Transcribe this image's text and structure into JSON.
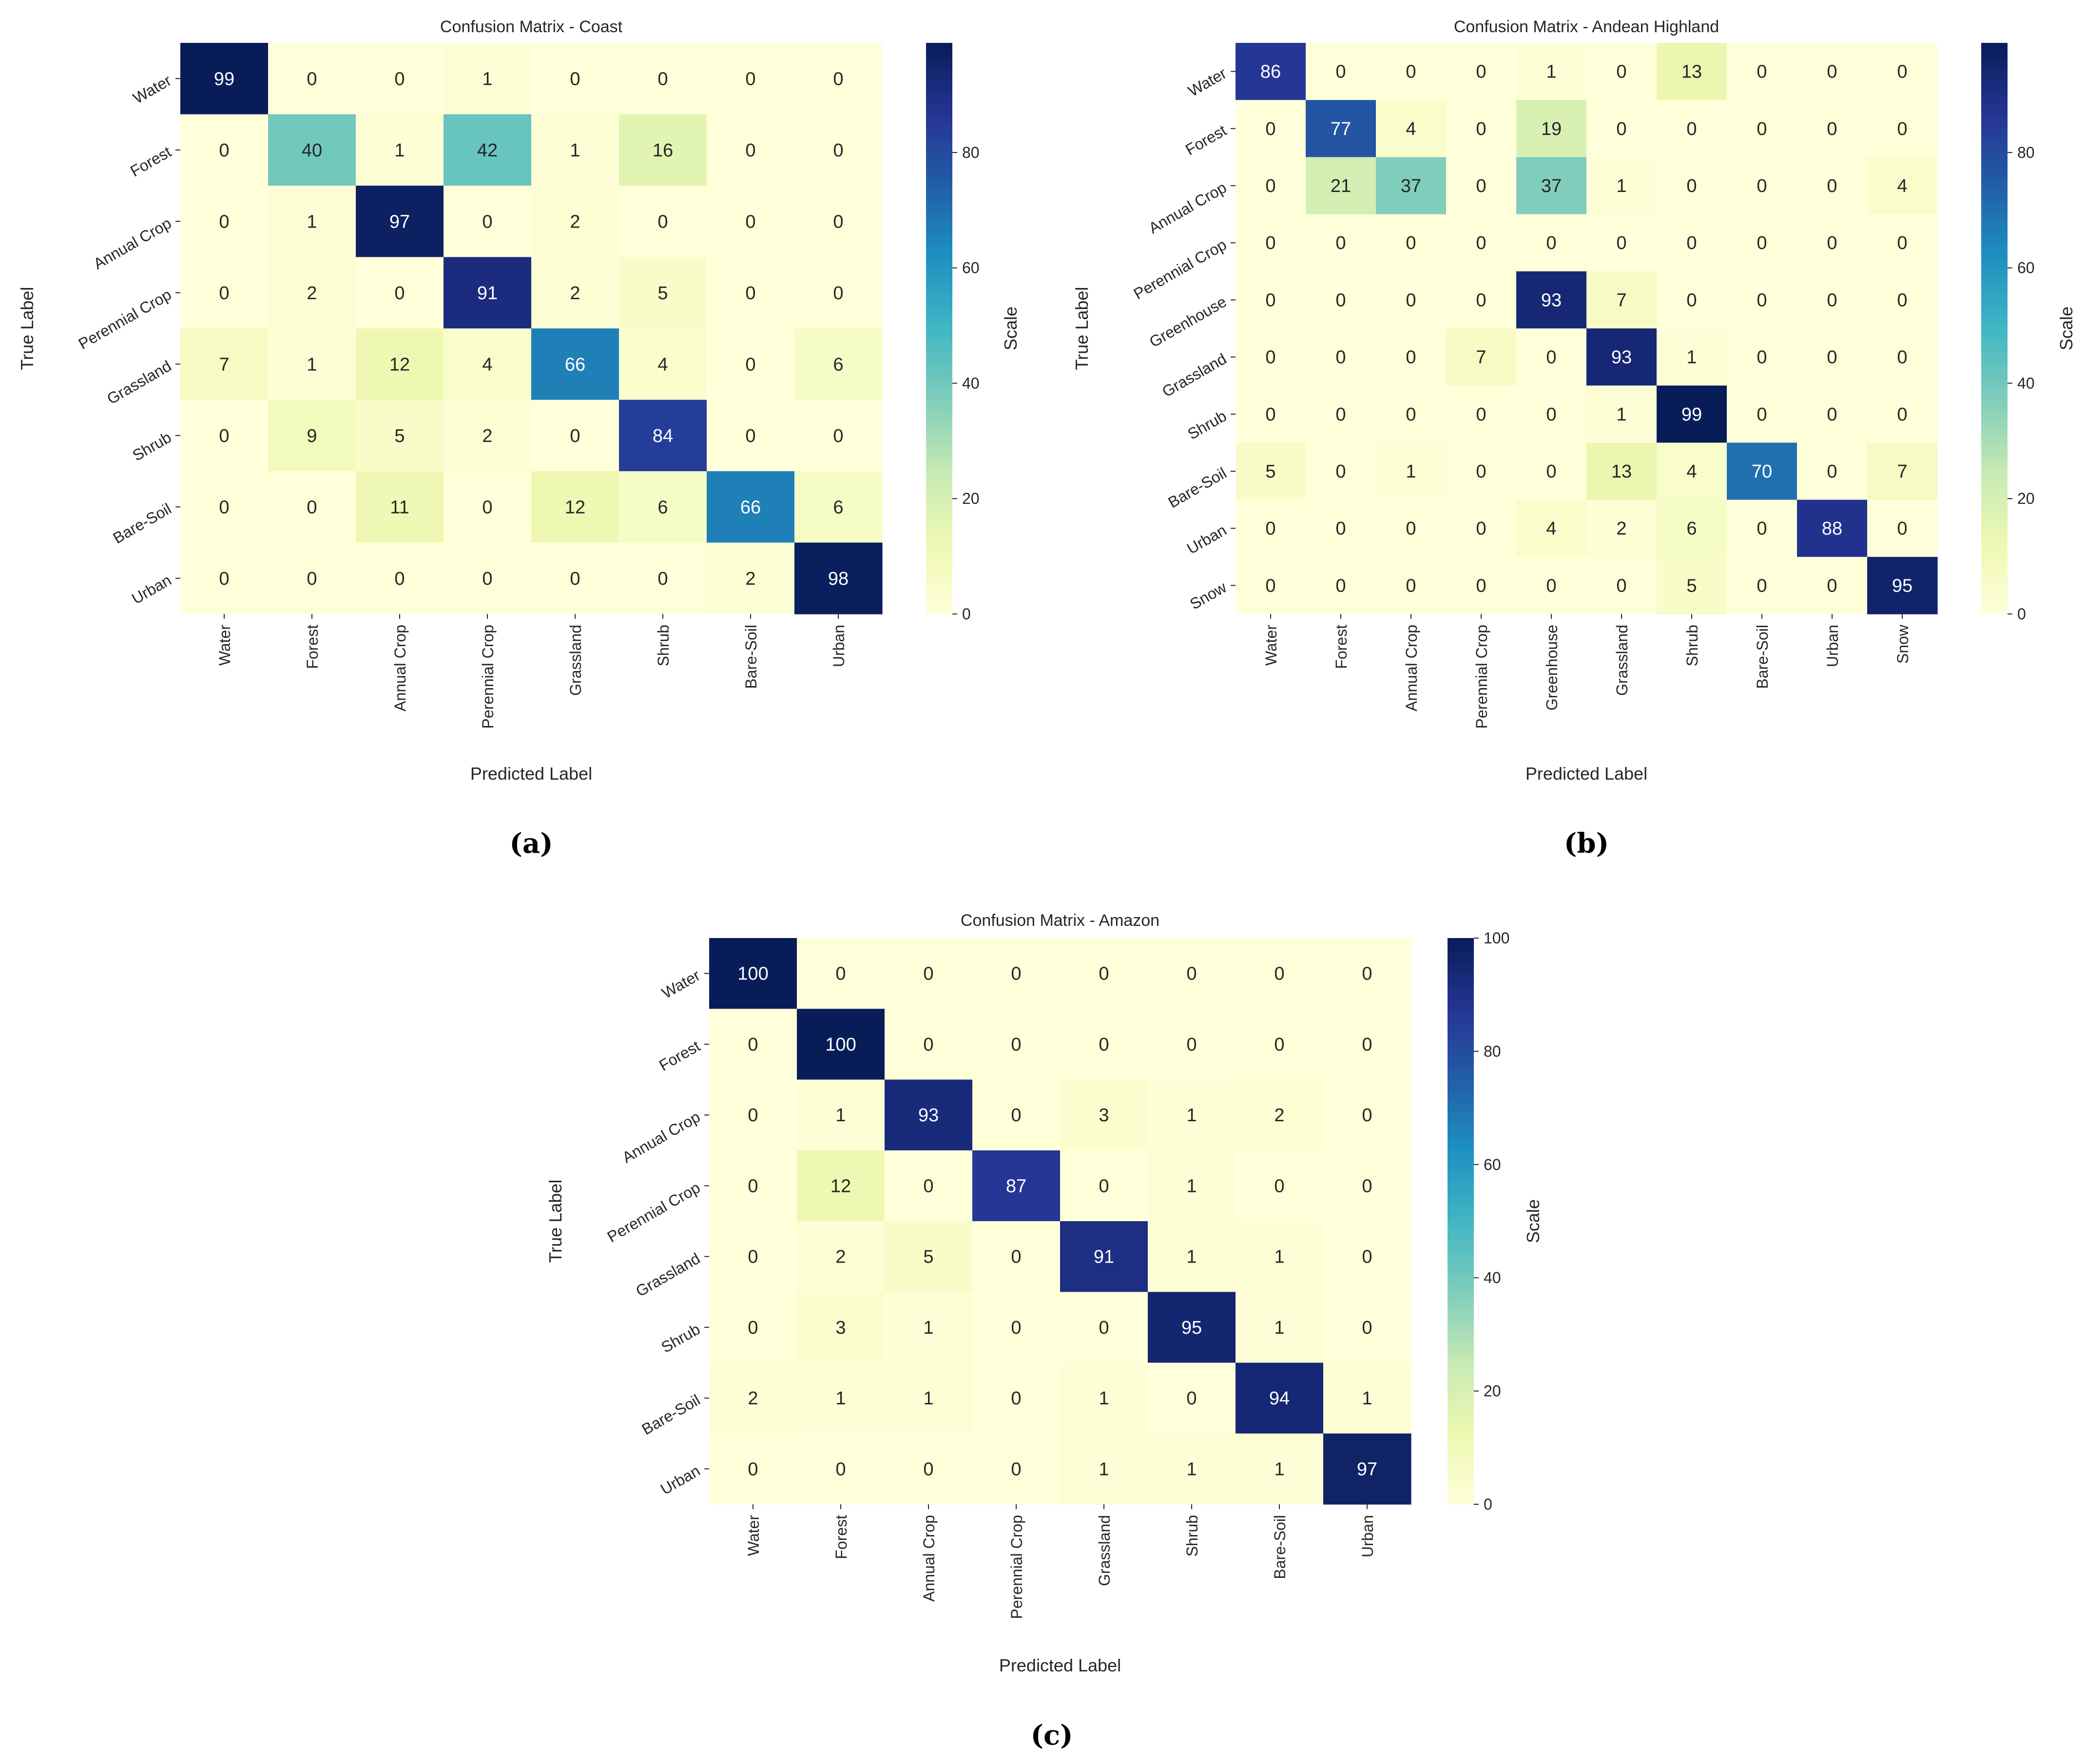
{
  "colorbar_label": "Scale",
  "panel_labels": [
    "(a)",
    "(b)",
    "(c)"
  ],
  "chart_data": [
    {
      "type": "heatmap",
      "title": "Confusion Matrix - Coast",
      "xlabel": "Predicted Label",
      "ylabel": "True Label",
      "colorbar_label": "Scale",
      "colorbar_ticks": [
        0,
        20,
        40,
        60,
        80
      ],
      "vmin": 0,
      "vmax": 99,
      "colormap": "YlGnBu",
      "categories": [
        "Water",
        "Forest",
        "Annual Crop",
        "Perennial Crop",
        "Grassland",
        "Shrub",
        "Bare-Soil",
        "Urban"
      ],
      "values": [
        [
          99,
          0,
          0,
          1,
          0,
          0,
          0,
          0
        ],
        [
          0,
          40,
          1,
          42,
          1,
          16,
          0,
          0
        ],
        [
          0,
          1,
          97,
          0,
          2,
          0,
          0,
          0
        ],
        [
          0,
          2,
          0,
          91,
          2,
          5,
          0,
          0
        ],
        [
          7,
          1,
          12,
          4,
          66,
          4,
          0,
          6
        ],
        [
          0,
          9,
          5,
          2,
          0,
          84,
          0,
          0
        ],
        [
          0,
          0,
          11,
          0,
          12,
          6,
          66,
          6
        ],
        [
          0,
          0,
          0,
          0,
          0,
          0,
          2,
          98
        ]
      ]
    },
    {
      "type": "heatmap",
      "title": "Confusion Matrix - Andean Highland",
      "xlabel": "Predicted Label",
      "ylabel": "True Label",
      "colorbar_label": "Scale",
      "colorbar_ticks": [
        0,
        20,
        40,
        60,
        80
      ],
      "vmin": 0,
      "vmax": 99,
      "colormap": "YlGnBu",
      "categories": [
        "Water",
        "Forest",
        "Annual Crop",
        "Perennial Crop",
        "Greenhouse",
        "Grassland",
        "Shrub",
        "Bare-Soil",
        "Urban",
        "Snow"
      ],
      "values": [
        [
          86,
          0,
          0,
          0,
          1,
          0,
          13,
          0,
          0,
          0
        ],
        [
          0,
          77,
          4,
          0,
          19,
          0,
          0,
          0,
          0,
          0
        ],
        [
          0,
          21,
          37,
          0,
          37,
          1,
          0,
          0,
          0,
          4
        ],
        [
          0,
          0,
          0,
          0,
          0,
          0,
          0,
          0,
          0,
          0
        ],
        [
          0,
          0,
          0,
          0,
          93,
          7,
          0,
          0,
          0,
          0
        ],
        [
          0,
          0,
          0,
          7,
          0,
          93,
          1,
          0,
          0,
          0
        ],
        [
          0,
          0,
          0,
          0,
          0,
          1,
          99,
          0,
          0,
          0
        ],
        [
          5,
          0,
          1,
          0,
          0,
          13,
          4,
          70,
          0,
          7
        ],
        [
          0,
          0,
          0,
          0,
          4,
          2,
          6,
          0,
          88,
          0
        ],
        [
          0,
          0,
          0,
          0,
          0,
          0,
          5,
          0,
          0,
          95
        ]
      ]
    },
    {
      "type": "heatmap",
      "title": "Confusion Matrix - Amazon",
      "xlabel": "Predicted Label",
      "ylabel": "True Label",
      "colorbar_label": "Scale",
      "colorbar_ticks": [
        0,
        20,
        40,
        60,
        80,
        100
      ],
      "vmin": 0,
      "vmax": 100,
      "colormap": "YlGnBu",
      "categories": [
        "Water",
        "Forest",
        "Annual Crop",
        "Perennial Crop",
        "Grassland",
        "Shrub",
        "Bare-Soil",
        "Urban"
      ],
      "values": [
        [
          100,
          0,
          0,
          0,
          0,
          0,
          0,
          0
        ],
        [
          0,
          100,
          0,
          0,
          0,
          0,
          0,
          0
        ],
        [
          0,
          1,
          93,
          0,
          3,
          1,
          2,
          0
        ],
        [
          0,
          12,
          0,
          87,
          0,
          1,
          0,
          0
        ],
        [
          0,
          2,
          5,
          0,
          91,
          1,
          1,
          0
        ],
        [
          0,
          3,
          1,
          0,
          0,
          95,
          1,
          0
        ],
        [
          2,
          1,
          1,
          0,
          1,
          0,
          94,
          1
        ],
        [
          0,
          0,
          0,
          0,
          1,
          1,
          1,
          97
        ]
      ]
    }
  ]
}
